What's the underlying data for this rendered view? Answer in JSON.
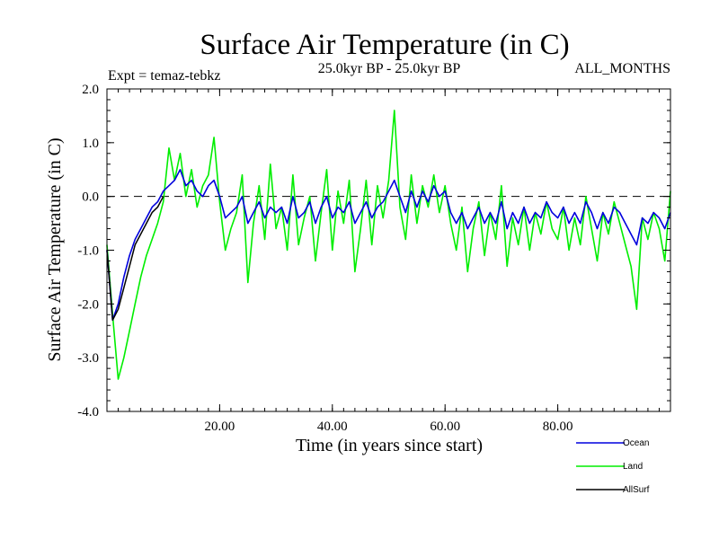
{
  "chart_data": {
    "type": "line",
    "title": "Surface Air Temperature (in C)",
    "subtitle_left": "Expt = temaz-tebkz",
    "subtitle_center": "25.0kyr BP - 25.0kyr BP",
    "subtitle_right": "ALL_MONTHS",
    "xlabel": "Time (in years since start)",
    "ylabel": "Surface Air Temperature (in C)",
    "xlim": [
      0,
      100
    ],
    "ylim": [
      -4.0,
      2.0
    ],
    "xticks": [
      20,
      40,
      60,
      80
    ],
    "xtick_labels": [
      "20.00",
      "40.00",
      "60.00",
      "80.00"
    ],
    "yticks": [
      -4,
      -3,
      -2,
      -1,
      0,
      1,
      2
    ],
    "ytick_labels": [
      "-4.0",
      "-3.0",
      "-2.0",
      "-1.0",
      "0.0",
      "1.0",
      "2.0"
    ],
    "reference_line": 0.0,
    "series": [
      {
        "name": "Land",
        "color": "#00ee00",
        "x": [
          0,
          1,
          2,
          3,
          4,
          5,
          6,
          7,
          8,
          9,
          10,
          11,
          12,
          13,
          14,
          15,
          16,
          17,
          18,
          19,
          20,
          21,
          22,
          23,
          24,
          25,
          26,
          27,
          28,
          29,
          30,
          31,
          32,
          33,
          34,
          35,
          36,
          37,
          38,
          39,
          40,
          41,
          42,
          43,
          44,
          45,
          46,
          47,
          48,
          49,
          50,
          51,
          52,
          53,
          54,
          55,
          56,
          57,
          58,
          59,
          60,
          61,
          62,
          63,
          64,
          65,
          66,
          67,
          68,
          69,
          70,
          71,
          72,
          73,
          74,
          75,
          76,
          77,
          78,
          79,
          80,
          81,
          82,
          83,
          84,
          85,
          86,
          87,
          88,
          89,
          90,
          91,
          92,
          93,
          94,
          95,
          96,
          97,
          98,
          99,
          100
        ],
        "values": [
          -0.9,
          -2.2,
          -3.4,
          -3.0,
          -2.5,
          -2.0,
          -1.5,
          -1.1,
          -0.8,
          -0.5,
          -0.1,
          0.9,
          0.3,
          0.8,
          0.0,
          0.5,
          -0.2,
          0.2,
          0.4,
          1.1,
          -0.1,
          -1.0,
          -0.6,
          -0.3,
          0.4,
          -1.6,
          -0.5,
          0.2,
          -0.8,
          0.6,
          -0.6,
          -0.2,
          -1.0,
          0.4,
          -0.9,
          -0.4,
          0.0,
          -1.2,
          -0.3,
          0.5,
          -1.0,
          0.1,
          -0.5,
          0.3,
          -1.4,
          -0.6,
          0.3,
          -0.9,
          0.2,
          -0.4,
          0.3,
          1.6,
          -0.2,
          -0.8,
          0.4,
          -0.5,
          0.2,
          -0.2,
          0.4,
          -0.3,
          0.2,
          -0.5,
          -1.0,
          -0.2,
          -1.4,
          -0.6,
          -0.1,
          -1.1,
          -0.3,
          -0.8,
          0.2,
          -1.3,
          -0.4,
          -0.9,
          -0.2,
          -1.0,
          -0.3,
          -0.7,
          -0.1,
          -0.6,
          -0.8,
          -0.2,
          -1.0,
          -0.4,
          -0.9,
          0.0,
          -0.6,
          -1.2,
          -0.3,
          -0.7,
          -0.1,
          -0.5,
          -0.9,
          -1.3,
          -2.1,
          -0.4,
          -0.8,
          -0.3,
          -0.6,
          -1.2,
          0.1
        ]
      },
      {
        "name": "Ocean",
        "color": "#0000dd",
        "x": [
          0,
          1,
          2,
          3,
          4,
          5,
          6,
          7,
          8,
          9,
          10,
          11,
          12,
          13,
          14,
          15,
          16,
          17,
          18,
          19,
          20,
          21,
          22,
          23,
          24,
          25,
          26,
          27,
          28,
          29,
          30,
          31,
          32,
          33,
          34,
          35,
          36,
          37,
          38,
          39,
          40,
          41,
          42,
          43,
          44,
          45,
          46,
          47,
          48,
          49,
          50,
          51,
          52,
          53,
          54,
          55,
          56,
          57,
          58,
          59,
          60,
          61,
          62,
          63,
          64,
          65,
          66,
          67,
          68,
          69,
          70,
          71,
          72,
          73,
          74,
          75,
          76,
          77,
          78,
          79,
          80,
          81,
          82,
          83,
          84,
          85,
          86,
          87,
          88,
          89,
          90,
          91,
          92,
          93,
          94,
          95,
          96,
          97,
          98,
          99,
          100
        ],
        "values": [
          -1.0,
          -2.3,
          -2.0,
          -1.5,
          -1.1,
          -0.8,
          -0.6,
          -0.4,
          -0.2,
          -0.1,
          0.1,
          0.2,
          0.3,
          0.5,
          0.2,
          0.3,
          0.1,
          0.0,
          0.2,
          0.3,
          0.0,
          -0.4,
          -0.3,
          -0.2,
          0.0,
          -0.5,
          -0.3,
          -0.1,
          -0.4,
          -0.2,
          -0.3,
          -0.2,
          -0.5,
          0.0,
          -0.4,
          -0.3,
          -0.1,
          -0.5,
          -0.2,
          0.0,
          -0.4,
          -0.2,
          -0.3,
          -0.1,
          -0.5,
          -0.3,
          -0.1,
          -0.4,
          -0.2,
          -0.1,
          0.1,
          0.3,
          0.0,
          -0.3,
          0.1,
          -0.2,
          0.1,
          -0.1,
          0.2,
          0.0,
          0.1,
          -0.3,
          -0.5,
          -0.3,
          -0.6,
          -0.4,
          -0.2,
          -0.5,
          -0.3,
          -0.5,
          -0.1,
          -0.6,
          -0.3,
          -0.5,
          -0.2,
          -0.5,
          -0.3,
          -0.4,
          -0.1,
          -0.3,
          -0.4,
          -0.2,
          -0.5,
          -0.3,
          -0.5,
          -0.1,
          -0.3,
          -0.6,
          -0.3,
          -0.5,
          -0.2,
          -0.3,
          -0.5,
          -0.7,
          -0.9,
          -0.4,
          -0.5,
          -0.3,
          -0.4,
          -0.6,
          -0.3
        ]
      },
      {
        "name": "AllSurf",
        "color": "#000000",
        "x": [
          0,
          1,
          2,
          3,
          4,
          5,
          6,
          7,
          8,
          9,
          10
        ],
        "values": [
          -1.0,
          -2.3,
          -2.1,
          -1.7,
          -1.3,
          -0.9,
          -0.7,
          -0.5,
          -0.3,
          -0.2,
          0.0
        ]
      }
    ],
    "legend": [
      {
        "label": "Ocean",
        "color": "#0000dd"
      },
      {
        "label": "Land",
        "color": "#00ee00"
      },
      {
        "label": "AllSurf",
        "color": "#000000"
      }
    ]
  }
}
